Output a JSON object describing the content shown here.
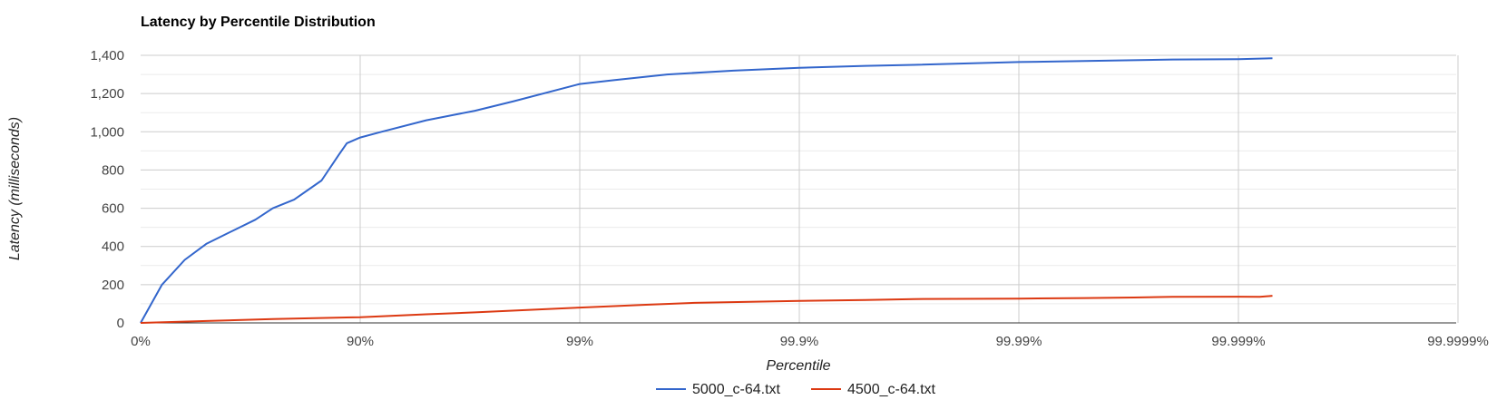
{
  "chart_data": {
    "type": "line",
    "title": "Latency by Percentile Distribution",
    "xlabel": "Percentile",
    "ylabel": "Latency (milliseconds)",
    "x_scale": "log-reciprocal (1/(1-p))",
    "x_ticks": [
      "0%",
      "90%",
      "99%",
      "99.9%",
      "99.99%",
      "99.999%",
      "99.9999%"
    ],
    "ylim": [
      0,
      1400
    ],
    "y_ticks": [
      "0",
      "200",
      "400",
      "600",
      "800",
      "1,000",
      "1,200",
      "1,400"
    ],
    "y_tick_values": [
      0,
      200,
      400,
      600,
      800,
      1000,
      1200,
      1400
    ],
    "grid": true,
    "legend_position": "bottom",
    "series": [
      {
        "name": "5000_c-64.txt",
        "color": "#3366cc",
        "x_percent": [
          0,
          20,
          37,
          50,
          60,
          70,
          75,
          80,
          85,
          87.5,
          88.5,
          90,
          92,
          95,
          97,
          98,
          99,
          99.3,
          99.6,
          99.8,
          99.9,
          99.95,
          99.97,
          99.99,
          99.995,
          99.998,
          99.999,
          99.9993
        ],
        "y": [
          0,
          200,
          330,
          415,
          470,
          540,
          600,
          645,
          745,
          880,
          940,
          970,
          1000,
          1060,
          1110,
          1160,
          1250,
          1270,
          1300,
          1320,
          1335,
          1345,
          1350,
          1365,
          1370,
          1378,
          1380,
          1385
        ]
      },
      {
        "name": "4500_c-64.txt",
        "color": "#dc3912",
        "x_percent": [
          0,
          50,
          75,
          90,
          95,
          97,
          99,
          99.5,
          99.7,
          99.9,
          99.95,
          99.97,
          99.99,
          99.995,
          99.997,
          99.998,
          99.999,
          99.9992,
          99.9993
        ],
        "y": [
          0,
          10,
          20,
          30,
          45,
          55,
          80,
          95,
          105,
          115,
          120,
          125,
          127,
          130,
          133,
          136,
          137,
          136,
          142
        ]
      }
    ]
  }
}
